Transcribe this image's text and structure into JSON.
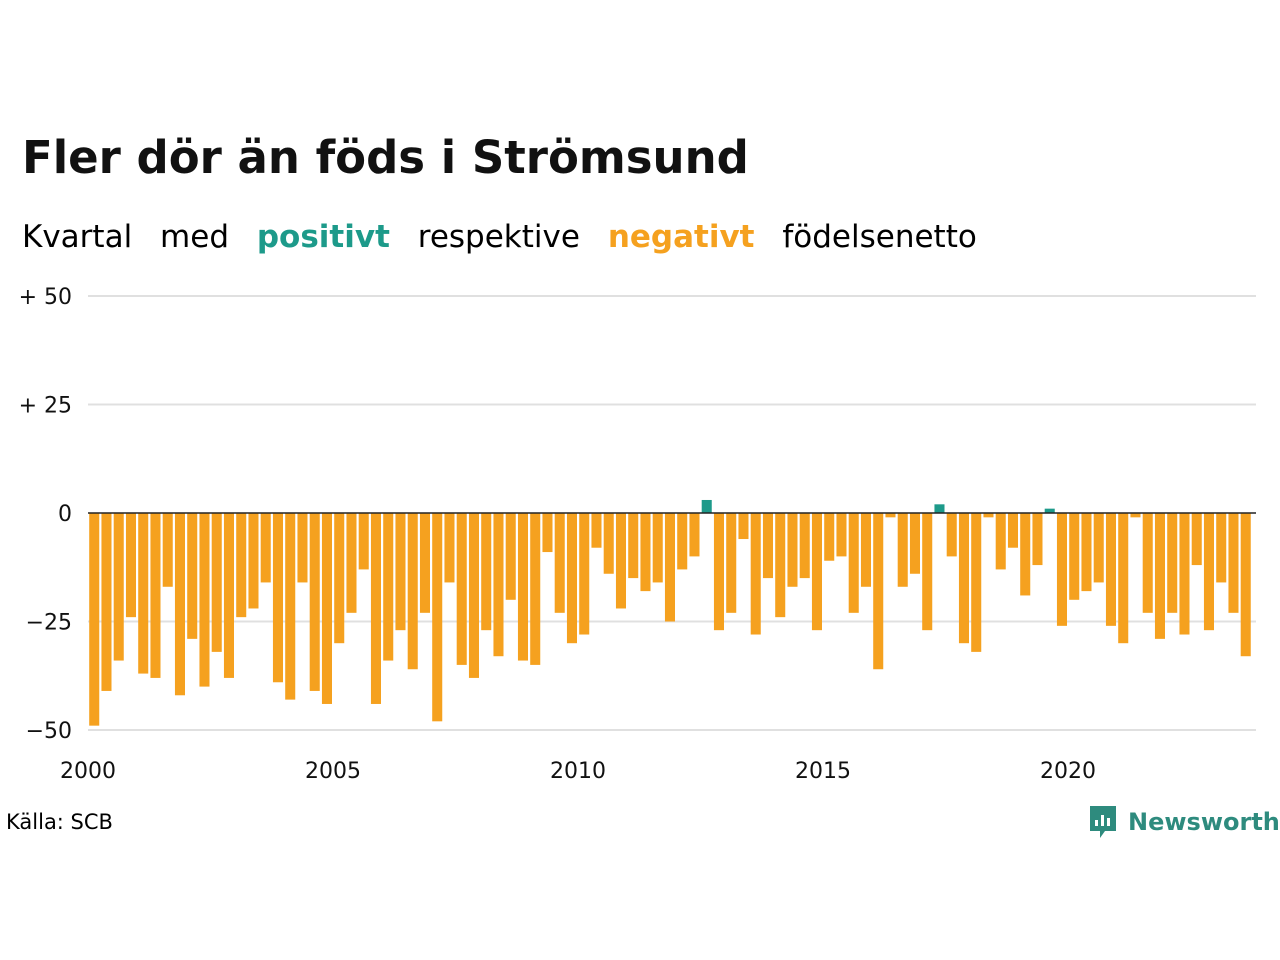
{
  "title": "Fler dör än föds i Strömsund",
  "subtitle": {
    "w1": "Kvartal",
    "w2": "med",
    "positive": "positivt",
    "w3": "respektive",
    "negative": "negativt",
    "w4": "födelsenetto"
  },
  "source": "Källa: SCB",
  "brand": "Newsworthy",
  "colors": {
    "positive": "#1d9a8a",
    "negative": "#f5a11f",
    "grid": "#e0e0e0",
    "zero": "#222222"
  },
  "chart_data": {
    "type": "bar",
    "xlabel": "",
    "ylabel": "",
    "ylim": [
      -50,
      50
    ],
    "yticks": [
      50,
      25,
      0,
      -25,
      -50
    ],
    "ytick_labels": [
      "+ 50",
      "+ 25",
      "0",
      "−25",
      "−50"
    ],
    "xticks": [
      2000,
      2005,
      2010,
      2015,
      2020
    ],
    "xtick_labels": [
      "2000",
      "2005",
      "2010",
      "2015",
      "2020"
    ],
    "x_start": 2000,
    "values": [
      -49,
      -41,
      -34,
      -24,
      -37,
      -38,
      -17,
      -42,
      -29,
      -40,
      -32,
      -38,
      -24,
      -22,
      -16,
      -39,
      -43,
      -16,
      -41,
      -44,
      -30,
      -23,
      -13,
      -44,
      -34,
      -27,
      -36,
      -23,
      -48,
      -16,
      -35,
      -38,
      -27,
      -33,
      -20,
      -34,
      -35,
      -9,
      -23,
      -30,
      -28,
      -8,
      -14,
      -22,
      -15,
      -18,
      -16,
      -25,
      -13,
      -10,
      3,
      -27,
      -23,
      -6,
      -28,
      -15,
      -24,
      -17,
      -15,
      -27,
      -11,
      -10,
      -23,
      -17,
      -36,
      -1,
      -17,
      -14,
      -27,
      2,
      -10,
      -30,
      -32,
      -1,
      -13,
      -8,
      -19,
      -12,
      1,
      -26,
      -20,
      -18,
      -16,
      -26,
      -30,
      -1,
      -23,
      -29,
      -23,
      -28,
      -12,
      -27,
      -16,
      -23,
      -33
    ]
  }
}
